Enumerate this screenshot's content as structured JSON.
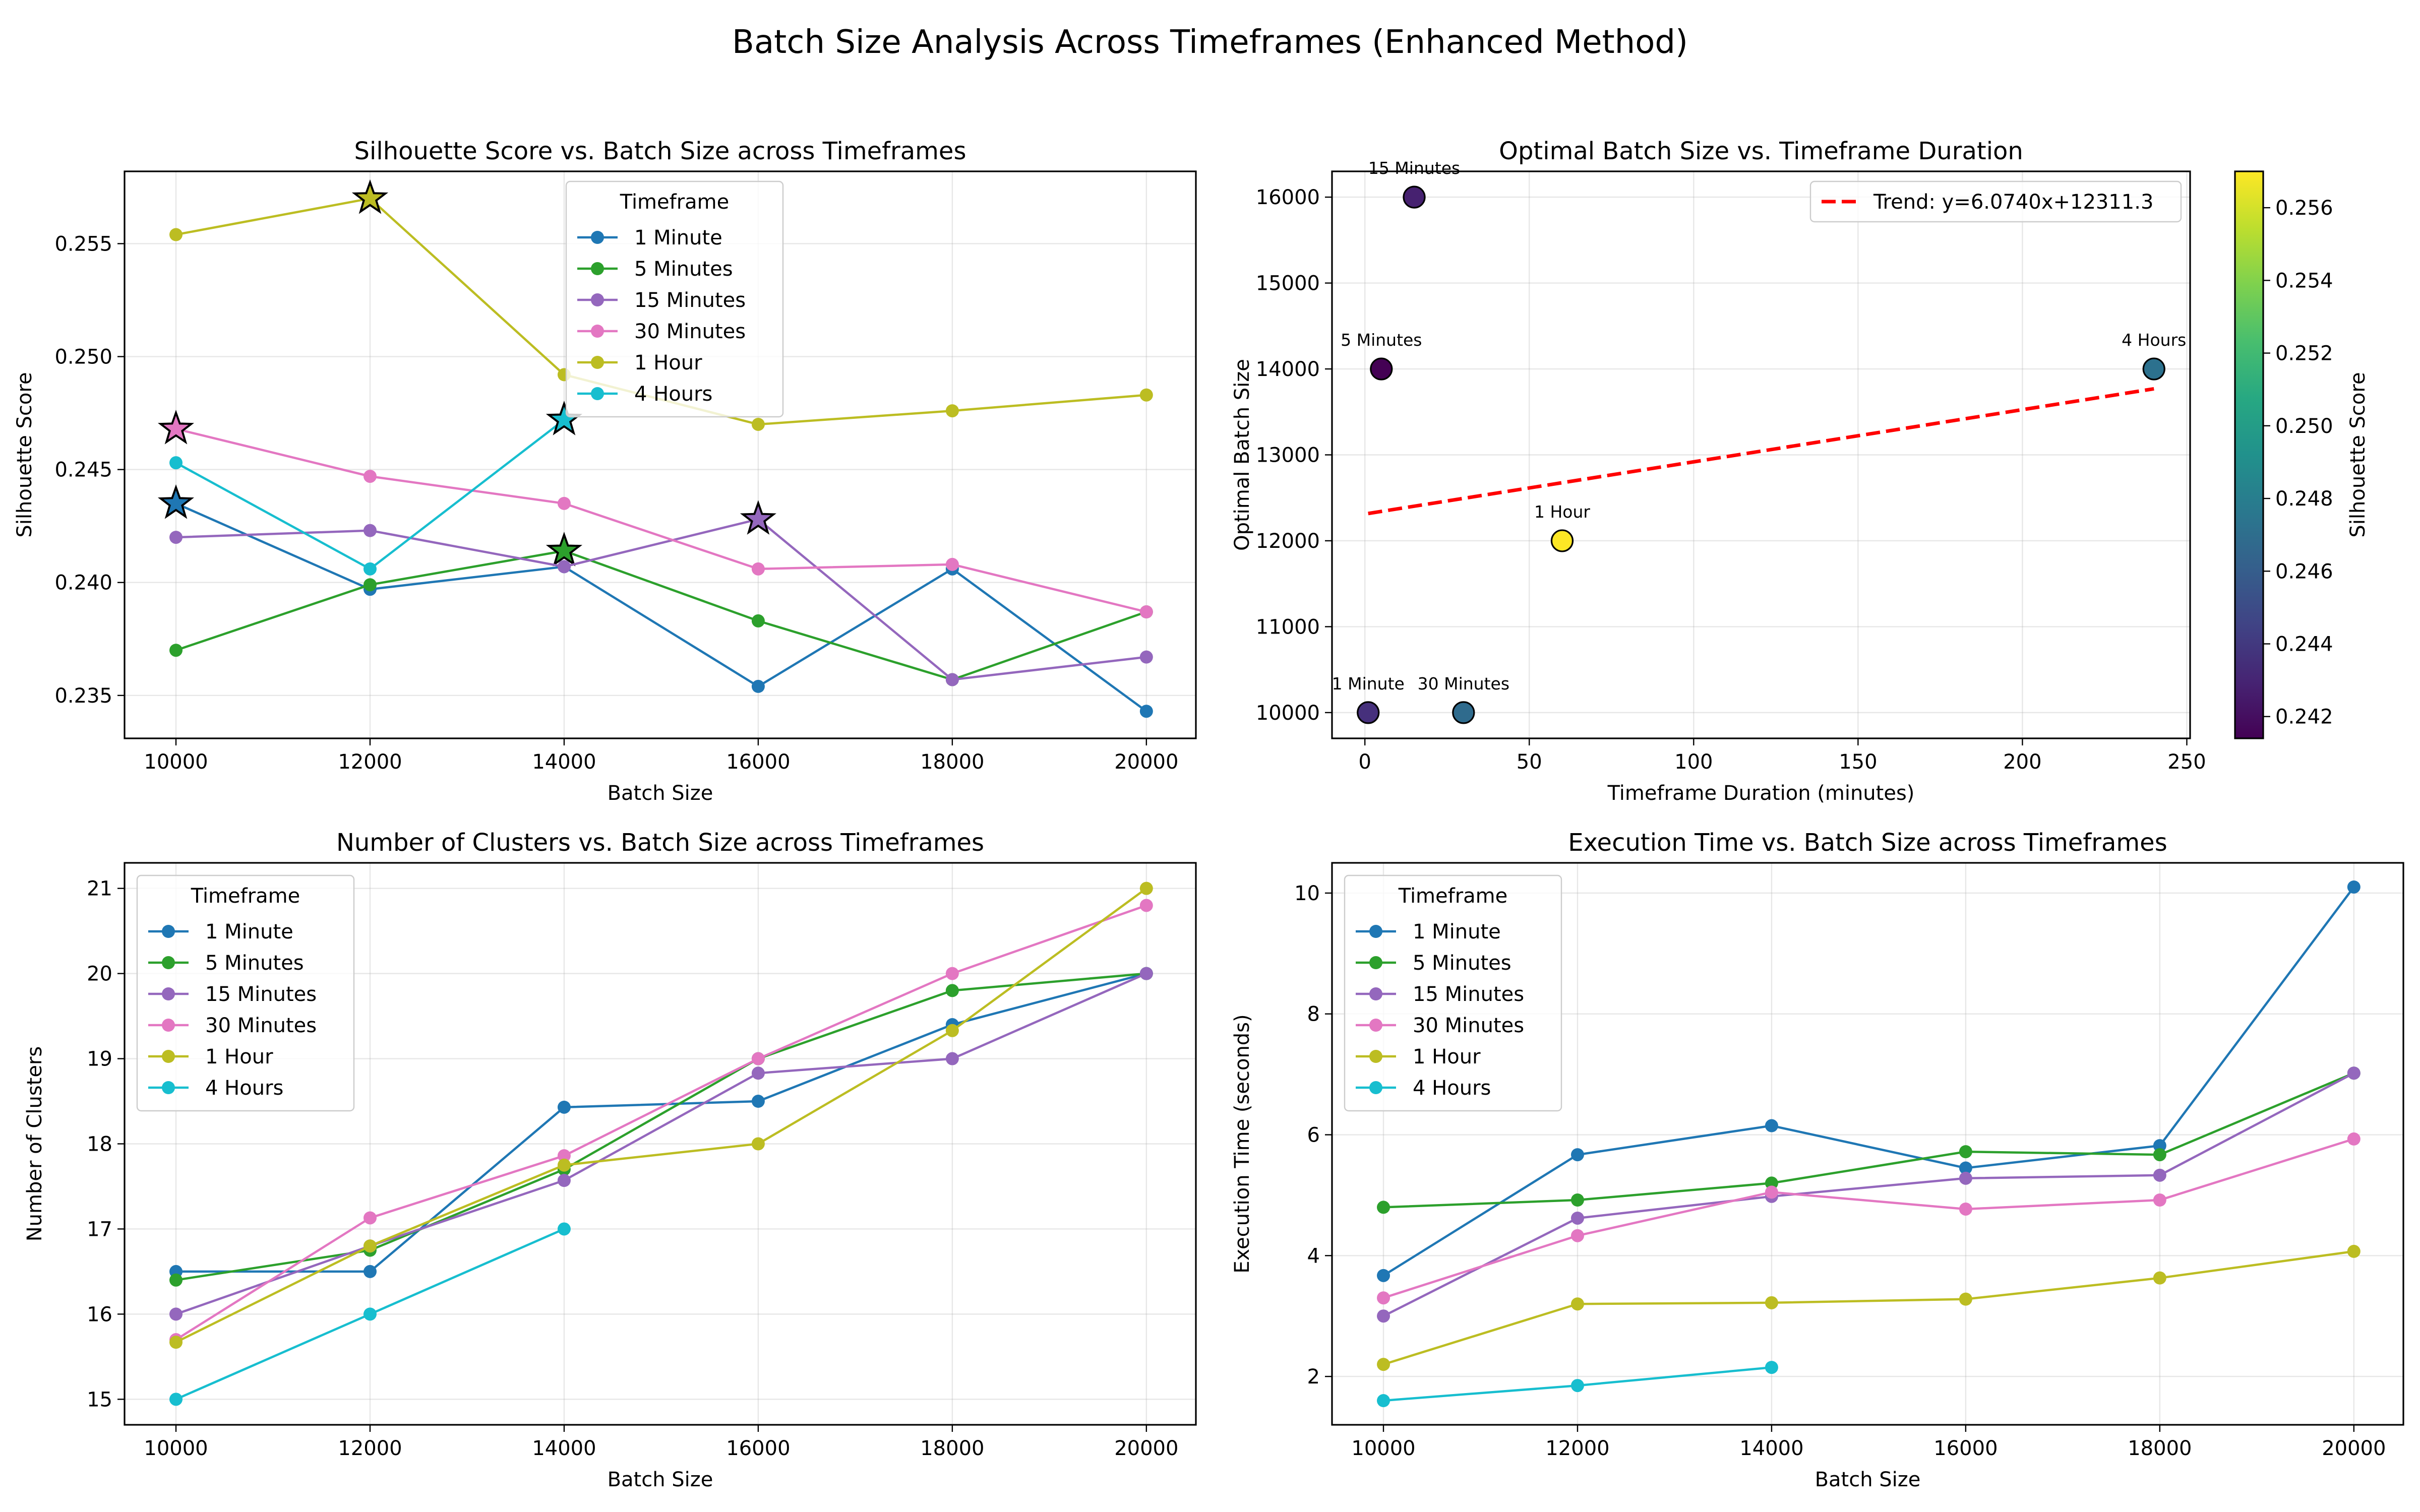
{
  "figure": {
    "title": "Batch Size Analysis Across Timeframes (Enhanced Method)"
  },
  "colors": {
    "1 Minute": "#1f77b4",
    "5 Minutes": "#2ca02c",
    "15 Minutes": "#9467bd",
    "30 Minutes": "#e377c2",
    "1 Hour": "#bcbd22",
    "4 Hours": "#17becf",
    "trend": "#ff0000"
  },
  "chart_data": [
    {
      "id": "silhouette",
      "type": "line",
      "title": "Silhouette Score vs. Batch Size across Timeframes",
      "xlabel": "Batch Size",
      "ylabel": "Silhouette Score",
      "xlim": [
        9470,
        20510
      ],
      "ylim": [
        0.2331,
        0.2582
      ],
      "xticks": [
        10000,
        12000,
        14000,
        16000,
        18000,
        20000
      ],
      "yticks": [
        0.235,
        0.24,
        0.245,
        0.25,
        0.255
      ],
      "ytick_decimals": 3,
      "grid": true,
      "legend": {
        "title": "Timeframe",
        "placement": "top-center"
      },
      "x": [
        10000,
        12000,
        14000,
        16000,
        18000,
        20000
      ],
      "series": [
        {
          "name": "1 Minute",
          "values": [
            0.2435,
            0.2397,
            0.2407,
            0.2354,
            0.2406,
            0.2343
          ],
          "optimal_x": 10000
        },
        {
          "name": "5 Minutes",
          "values": [
            0.237,
            0.2399,
            0.2414,
            0.2383,
            0.2357,
            0.2387
          ],
          "optimal_x": 14000
        },
        {
          "name": "15 Minutes",
          "values": [
            0.242,
            0.2423,
            0.2407,
            0.2428,
            0.2357,
            0.2367
          ],
          "optimal_x": 16000
        },
        {
          "name": "30 Minutes",
          "values": [
            0.2468,
            0.2447,
            0.2435,
            0.2406,
            0.2408,
            0.2387
          ],
          "optimal_x": 10000
        },
        {
          "name": "1 Hour",
          "values": [
            0.2554,
            0.257,
            0.2492,
            0.247,
            0.2476,
            0.2483
          ],
          "optimal_x": 12000
        },
        {
          "name": "4 Hours",
          "values": [
            0.2453,
            0.2406,
            0.2472,
            null,
            null,
            null
          ],
          "optimal_x": 14000
        }
      ]
    },
    {
      "id": "optimal",
      "type": "scatter",
      "title": "Optimal Batch Size vs. Timeframe Duration",
      "xlabel": "Timeframe Duration (minutes)",
      "ylabel": "Optimal Batch Size",
      "xlim": [
        -10,
        251
      ],
      "ylim": [
        9700,
        16300
      ],
      "xticks": [
        0,
        50,
        100,
        150,
        200,
        250
      ],
      "yticks": [
        10000,
        11000,
        12000,
        13000,
        14000,
        15000,
        16000
      ],
      "ytick_decimals": 0,
      "grid": true,
      "points": [
        {
          "label": "1 Minute",
          "x": 1,
          "y": 10000,
          "score": 0.2435
        },
        {
          "label": "5 Minutes",
          "x": 5,
          "y": 14000,
          "score": 0.2414
        },
        {
          "label": "15 Minutes",
          "x": 15,
          "y": 16000,
          "score": 0.2428
        },
        {
          "label": "30 Minutes",
          "x": 30,
          "y": 10000,
          "score": 0.2468
        },
        {
          "label": "1 Hour",
          "x": 60,
          "y": 12000,
          "score": 0.257
        },
        {
          "label": "4 Hours",
          "x": 240,
          "y": 14000,
          "score": 0.2472
        }
      ],
      "trend": {
        "label": "Trend: y=6.0740x+12311.3",
        "slope": 6.074,
        "intercept": 12311.3,
        "x_range": [
          1,
          240
        ]
      },
      "legend": {
        "placement": "top-right"
      },
      "colorbar": {
        "label": "Silhouette Score",
        "range": [
          0.2414,
          0.257
        ],
        "ticks": [
          0.242,
          0.244,
          0.246,
          0.248,
          0.25,
          0.252,
          0.254,
          0.256
        ],
        "colormap": "viridis"
      }
    },
    {
      "id": "clusters",
      "type": "line",
      "title": "Number of Clusters vs. Batch Size across Timeframes",
      "xlabel": "Batch Size",
      "ylabel": "Number of Clusters",
      "xlim": [
        9470,
        20510
      ],
      "ylim": [
        14.7,
        21.3
      ],
      "xticks": [
        10000,
        12000,
        14000,
        16000,
        18000,
        20000
      ],
      "yticks": [
        15,
        16,
        17,
        18,
        19,
        20,
        21
      ],
      "ytick_decimals": 0,
      "grid": true,
      "legend": {
        "title": "Timeframe",
        "placement": "top-left"
      },
      "x": [
        10000,
        12000,
        14000,
        16000,
        18000,
        20000
      ],
      "series": [
        {
          "name": "1 Minute",
          "values": [
            16.5,
            16.5,
            18.43,
            18.5,
            19.4,
            20.0
          ]
        },
        {
          "name": "5 Minutes",
          "values": [
            16.4,
            16.75,
            17.7,
            19.0,
            19.8,
            20.0
          ]
        },
        {
          "name": "15 Minutes",
          "values": [
            16.0,
            16.8,
            17.57,
            18.83,
            19.0,
            20.0
          ]
        },
        {
          "name": "30 Minutes",
          "values": [
            15.7,
            17.13,
            17.86,
            19.0,
            20.0,
            20.8
          ]
        },
        {
          "name": "1 Hour",
          "values": [
            15.67,
            16.8,
            17.75,
            18.0,
            19.33,
            21.0
          ]
        },
        {
          "name": "4 Hours",
          "values": [
            15.0,
            16.0,
            17.0,
            null,
            null,
            null
          ]
        }
      ]
    },
    {
      "id": "exectime",
      "type": "line",
      "title": "Execution Time vs. Batch Size across Timeframes",
      "xlabel": "Batch Size",
      "ylabel": "Execution Time (seconds)",
      "xlim": [
        9470,
        20510
      ],
      "ylim": [
        1.2,
        10.5
      ],
      "xticks": [
        10000,
        12000,
        14000,
        16000,
        18000,
        20000
      ],
      "yticks": [
        2,
        4,
        6,
        8,
        10
      ],
      "ytick_decimals": 0,
      "grid": true,
      "legend": {
        "title": "Timeframe",
        "placement": "top-left"
      },
      "x": [
        10000,
        12000,
        14000,
        16000,
        18000,
        20000
      ],
      "series": [
        {
          "name": "1 Minute",
          "values": [
            3.67,
            5.67,
            6.15,
            5.45,
            5.82,
            10.1
          ]
        },
        {
          "name": "5 Minutes",
          "values": [
            4.8,
            4.92,
            5.2,
            5.72,
            5.67,
            7.02
          ]
        },
        {
          "name": "15 Minutes",
          "values": [
            3.0,
            4.62,
            4.98,
            5.28,
            5.33,
            7.02
          ]
        },
        {
          "name": "30 Minutes",
          "values": [
            3.3,
            4.33,
            5.05,
            4.77,
            4.92,
            5.93
          ]
        },
        {
          "name": "1 Hour",
          "values": [
            2.2,
            3.2,
            3.22,
            3.28,
            3.63,
            4.07
          ]
        },
        {
          "name": "4 Hours",
          "values": [
            1.6,
            1.85,
            2.15,
            null,
            null,
            null
          ]
        }
      ]
    }
  ]
}
